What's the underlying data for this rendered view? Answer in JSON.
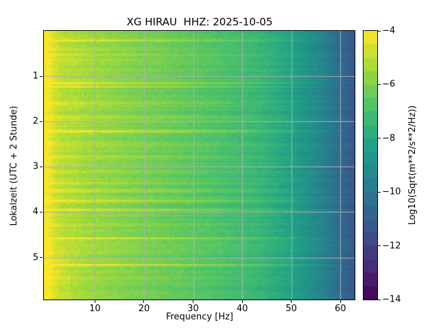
{
  "figure": {
    "background": "#ffffff",
    "text_color": "#000000"
  },
  "chart_data": {
    "type": "heatmap",
    "subtype": "spectrogram",
    "title": "XG HIRAU  HHZ: 2025-10-05",
    "xlabel": "Frequency [Hz]",
    "ylabel": "Lokalzeit (UTC + 2 Stunde)",
    "x_unit": "Hz",
    "y_unit": "hours",
    "xlim": [
      -0.4,
      62.9
    ],
    "ylim_top_to_bottom": [
      0,
      5.93
    ],
    "y_increases_downward": true,
    "x_ticks": [
      10,
      20,
      30,
      40,
      50,
      60
    ],
    "x_tick_labels": [
      "10",
      "20",
      "30",
      "40",
      "50",
      "60"
    ],
    "y_ticks": [
      1,
      2,
      3,
      4,
      5
    ],
    "y_tick_labels": [
      "1",
      "2",
      "3",
      "4",
      "5"
    ],
    "grid": true,
    "grid_color": "#b0b0b0",
    "colormap": "viridis",
    "colormap_anchors": [
      [
        0.0,
        "#440154"
      ],
      [
        0.143,
        "#46327e"
      ],
      [
        0.286,
        "#365c8d"
      ],
      [
        0.429,
        "#277f8e"
      ],
      [
        0.571,
        "#1fa187"
      ],
      [
        0.714,
        "#4ac16d"
      ],
      [
        0.857,
        "#a0da39"
      ],
      [
        1.0,
        "#fde725"
      ]
    ],
    "colorbar": {
      "label": "Log10(Sqrt(m**2/s**2/Hz))",
      "vmin": -14,
      "vmax": -4,
      "n_steps": 20,
      "ticks": [
        -4,
        -6,
        -8,
        -10,
        -12,
        -14
      ],
      "tick_labels": [
        "−4",
        "−6",
        "−8",
        "−10",
        "−12",
        "−14"
      ]
    },
    "background_profile_hz_vs_log10": [
      [
        0,
        -4.05
      ],
      [
        0.8,
        -4.25
      ],
      [
        2,
        -4.8
      ],
      [
        4,
        -5.15
      ],
      [
        6,
        -5.2
      ],
      [
        8,
        -5.45
      ],
      [
        12,
        -5.7
      ],
      [
        16,
        -5.9
      ],
      [
        20,
        -6.1
      ],
      [
        25,
        -6.3
      ],
      [
        30,
        -6.55
      ],
      [
        35,
        -6.8
      ],
      [
        40,
        -7.1
      ],
      [
        44,
        -7.4
      ],
      [
        47,
        -7.8
      ],
      [
        50,
        -8.2
      ],
      [
        53,
        -8.8
      ],
      [
        56,
        -9.4
      ],
      [
        59,
        -10.2
      ],
      [
        61,
        -10.8
      ],
      [
        63,
        -11.3
      ]
    ],
    "event_streaks_hours": [
      {
        "t": 0.21,
        "strength": 1.5
      },
      {
        "t": 0.4,
        "strength": 0.8
      },
      {
        "t": 0.52,
        "strength": 0.5
      },
      {
        "t": 0.65,
        "strength": 0.6
      },
      {
        "t": 1.17,
        "strength": 1.5
      },
      {
        "t": 1.23,
        "strength": 1.0
      },
      {
        "t": 1.61,
        "strength": 1.2
      },
      {
        "t": 1.9,
        "strength": 0.5
      },
      {
        "t": 2.22,
        "strength": 1.5
      },
      {
        "t": 2.47,
        "strength": 0.6
      },
      {
        "t": 2.78,
        "strength": 0.8
      },
      {
        "t": 3.1,
        "strength": 0.7
      },
      {
        "t": 3.37,
        "strength": 1.0
      },
      {
        "t": 3.53,
        "strength": 1.2
      },
      {
        "t": 3.76,
        "strength": 1.4
      },
      {
        "t": 3.95,
        "strength": 0.9
      },
      {
        "t": 4.3,
        "strength": 0.5
      },
      {
        "t": 4.58,
        "strength": 1.4
      },
      {
        "t": 4.9,
        "strength": 0.5
      },
      {
        "t": 5.16,
        "strength": 1.5
      },
      {
        "t": 5.45,
        "strength": 0.5
      }
    ]
  }
}
